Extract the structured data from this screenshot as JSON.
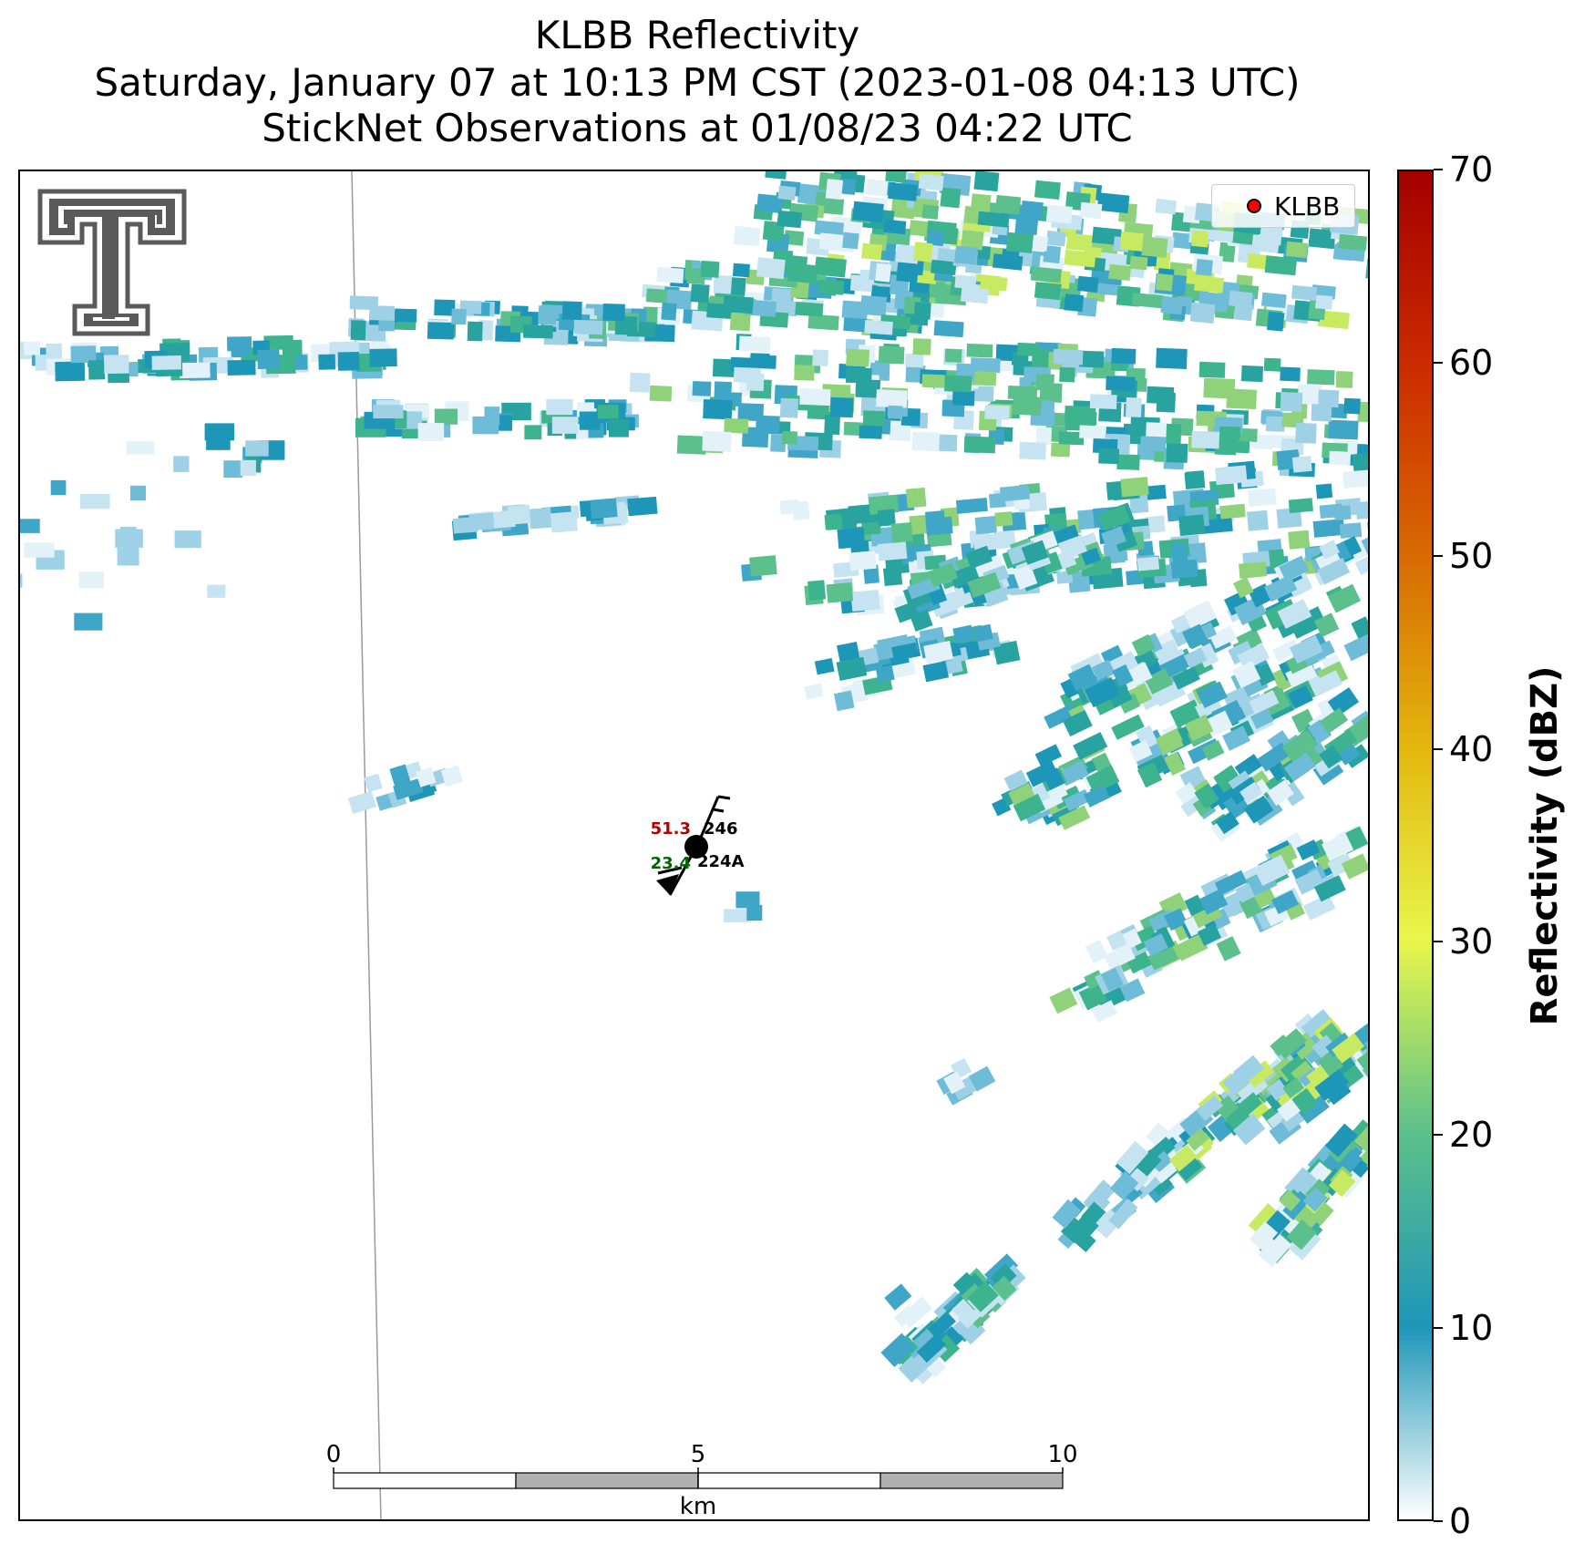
{
  "title": {
    "line1": "KLBB Reflectivity",
    "line2": "Saturday, January 07 at 10:13 PM CST (2023-01-08 04:13 UTC)",
    "line3": "StickNet Observations at 01/08/23 04:22 UTC"
  },
  "legend": {
    "label": "KLBB",
    "marker_color": "#ff0000"
  },
  "colorbar": {
    "label": "Reflectivity (dBZ)",
    "ticks": [
      "0",
      "10",
      "20",
      "30",
      "40",
      "50",
      "60",
      "70"
    ],
    "min": 0,
    "max": 70
  },
  "station": {
    "temperature": "51.3",
    "dewpoint": "23.4",
    "pressure_code": "246",
    "station_id": "224A",
    "temperature_color": "#b30000",
    "dewpoint_color": "#006400"
  },
  "scale_bar": {
    "labels": [
      "0",
      "5",
      "10"
    ],
    "unit": "km"
  },
  "logo": {
    "name": "Texas Tech Double T",
    "color": "#5a5a5a"
  }
}
